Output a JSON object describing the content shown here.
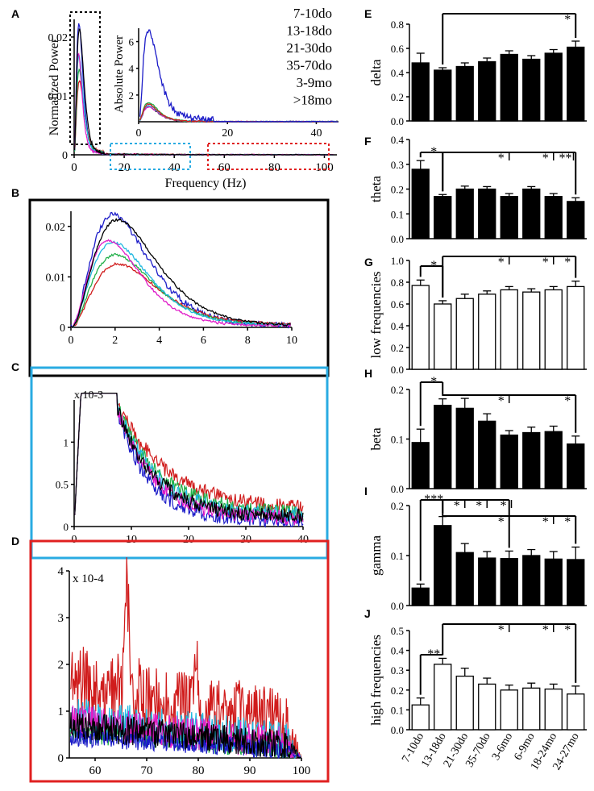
{
  "panel_letters": [
    "A",
    "B",
    "C",
    "D",
    "E",
    "F",
    "G",
    "H",
    "I",
    "J"
  ],
  "colors": {
    "7-10do": "#1c1cc8",
    "13-18do": "#d01c1c",
    "21-30do": "#22b04a",
    "35-70do": "#22b8e0",
    "3-9mo": "#e01cc8",
    ">18mo": "#000000",
    "box_black": "#000000",
    "box_blue": "#29abe2",
    "box_red": "#e02020"
  },
  "chart_data": [
    {
      "id": "A",
      "type": "line",
      "ylabel": "Normalized Power",
      "xlabel": "Frequency (Hz)",
      "xlim": [
        0,
        105
      ],
      "ylim": [
        0,
        0.023
      ],
      "xticks": [
        "0",
        "20",
        "40",
        "60",
        "80",
        "100"
      ],
      "yticks": [
        "0",
        "0.01",
        "0.02"
      ],
      "legend": [
        "7-10do",
        "13-18do",
        "21-30do",
        "35-70do",
        "3-9mo",
        ">18mo"
      ],
      "inset": {
        "ylabel": "Absolute Power",
        "xlim": [
          0,
          45
        ],
        "ylim": [
          0,
          7
        ],
        "xticks": [
          "0",
          "20",
          "40"
        ],
        "yticks": [
          "2",
          "4",
          "6"
        ]
      }
    },
    {
      "id": "B",
      "type": "line",
      "xlim": [
        0,
        10
      ],
      "ylim": [
        0,
        0.023
      ],
      "xticks": [
        "0",
        "2",
        "4",
        "6",
        "8",
        "10"
      ],
      "yticks": [
        "0",
        "0.01",
        "0.02"
      ]
    },
    {
      "id": "C",
      "type": "line",
      "xlim": [
        0,
        40
      ],
      "ylim": [
        0,
        0.0015
      ],
      "scale": "x 10-3",
      "xticks": [
        "0",
        "10",
        "20",
        "30",
        "40"
      ],
      "yticks": [
        "0",
        "0.5",
        "1"
      ]
    },
    {
      "id": "D",
      "type": "line",
      "xlim": [
        55,
        100
      ],
      "ylim": [
        0,
        0.0004
      ],
      "scale": "x 10-4",
      "xticks": [
        "60",
        "70",
        "80",
        "90",
        "100"
      ],
      "yticks": [
        "0",
        "1",
        "2",
        "3",
        "4"
      ]
    },
    {
      "id": "E",
      "type": "bar",
      "ylabel": "delta",
      "fill": "black",
      "categories": [
        "7-10do",
        "13-18do",
        "21-30do",
        "35-70do",
        "3-6mo",
        "6-9mo",
        "18-24mo",
        "24-27mo"
      ],
      "values": [
        0.48,
        0.42,
        0.45,
        0.49,
        0.55,
        0.51,
        0.56,
        0.61
      ],
      "errors": [
        0.08,
        0.02,
        0.03,
        0.03,
        0.03,
        0.03,
        0.03,
        0.05
      ],
      "ylim": [
        0,
        0.8
      ],
      "yticks": [
        "0.0",
        "0.2",
        "0.4",
        "0.6",
        "0.8"
      ],
      "stars": [
        {
          "text": "*"
        }
      ]
    },
    {
      "id": "F",
      "type": "bar",
      "ylabel": "theta",
      "fill": "black",
      "values": [
        0.28,
        0.17,
        0.2,
        0.2,
        0.17,
        0.2,
        0.17,
        0.15
      ],
      "errors": [
        0.035,
        0.008,
        0.012,
        0.01,
        0.012,
        0.01,
        0.012,
        0.015
      ],
      "ylim": [
        0,
        0.4
      ],
      "yticks": [
        "0.0",
        "0.1",
        "0.2",
        "0.3",
        "0.4"
      ],
      "stars": [
        {
          "text": "*"
        },
        {
          "text": "*"
        },
        {
          "text": "*"
        },
        {
          "text": "**"
        }
      ]
    },
    {
      "id": "G",
      "type": "bar",
      "ylabel": "low frequencies",
      "fill": "white",
      "values": [
        0.77,
        0.6,
        0.65,
        0.69,
        0.73,
        0.71,
        0.73,
        0.76
      ],
      "errors": [
        0.05,
        0.03,
        0.04,
        0.03,
        0.03,
        0.03,
        0.03,
        0.05
      ],
      "ylim": [
        0,
        1.0
      ],
      "yticks": [
        "0.0",
        "0.2",
        "0.4",
        "0.6",
        "0.8",
        "1.0"
      ],
      "stars": [
        {
          "text": "*"
        },
        {
          "text": "*"
        },
        {
          "text": "*"
        },
        {
          "text": "*"
        }
      ]
    },
    {
      "id": "H",
      "type": "bar",
      "ylabel": "beta",
      "fill": "black",
      "values": [
        0.093,
        0.168,
        0.162,
        0.136,
        0.108,
        0.113,
        0.115,
        0.09
      ],
      "errors": [
        0.027,
        0.013,
        0.02,
        0.015,
        0.009,
        0.011,
        0.011,
        0.016
      ],
      "ylim": [
        0,
        0.2
      ],
      "yticks": [
        "0.0",
        "0.1",
        "0.2"
      ],
      "stars": [
        {
          "text": "*"
        },
        {
          "text": "*"
        },
        {
          "text": "*"
        }
      ]
    },
    {
      "id": "I",
      "type": "bar",
      "ylabel": "gamma",
      "fill": "black",
      "values": [
        0.035,
        0.16,
        0.106,
        0.095,
        0.094,
        0.1,
        0.093,
        0.092
      ],
      "errors": [
        0.008,
        0.018,
        0.018,
        0.013,
        0.015,
        0.012,
        0.015,
        0.025
      ],
      "ylim": [
        0,
        0.2
      ],
      "yticks": [
        "0.0",
        "0.1",
        "0.2"
      ],
      "stars": [
        {
          "text": "***"
        },
        {
          "text": "*"
        },
        {
          "text": "*"
        },
        {
          "text": "*"
        },
        {
          "text": "*"
        },
        {
          "text": "*"
        },
        {
          "text": "*"
        }
      ]
    },
    {
      "id": "J",
      "type": "bar",
      "ylabel": "high frequencies",
      "fill": "white",
      "values": [
        0.125,
        0.33,
        0.27,
        0.23,
        0.2,
        0.21,
        0.205,
        0.18
      ],
      "errors": [
        0.035,
        0.03,
        0.04,
        0.03,
        0.025,
        0.025,
        0.025,
        0.04
      ],
      "ylim": [
        0,
        0.5
      ],
      "yticks": [
        "0.0",
        "0.1",
        "0.2",
        "0.3",
        "0.4",
        "0.5"
      ],
      "stars": [
        {
          "text": "**"
        },
        {
          "text": "*"
        },
        {
          "text": "*"
        },
        {
          "text": "*"
        }
      ]
    }
  ]
}
